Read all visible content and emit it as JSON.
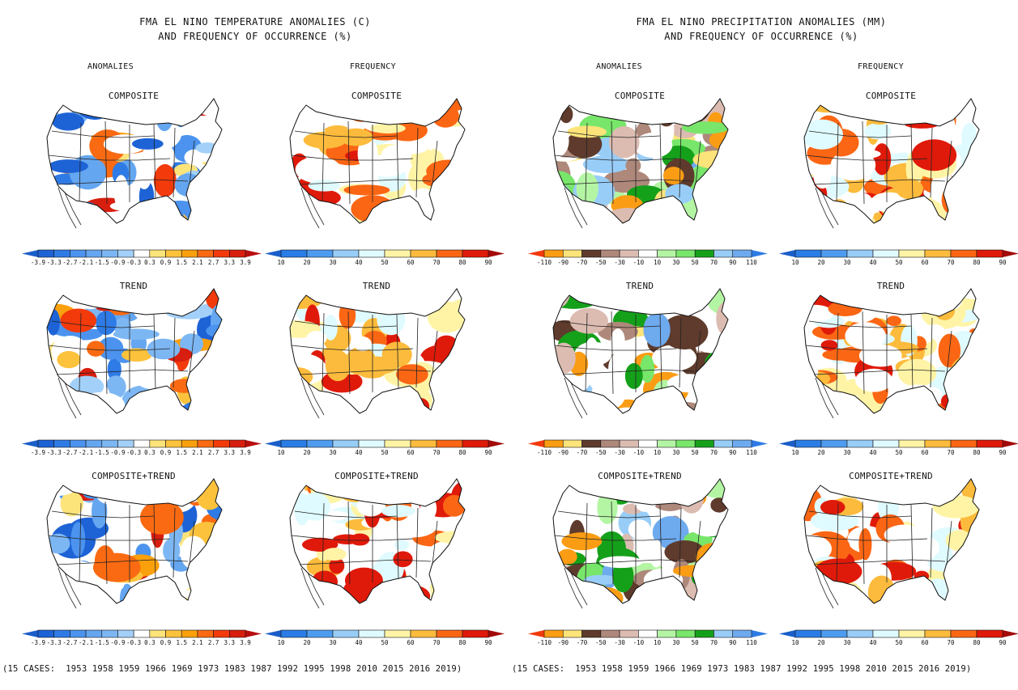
{
  "headers": {
    "temperature_title_line1": "FMA EL NINO TEMPERATURE ANOMALIES (C)",
    "temperature_title_line2": "AND FREQUENCY OF OCCURRENCE (%)",
    "precipitation_title_line1": "FMA EL NINO PRECIPITATION ANOMALIES (MM)",
    "precipitation_title_line2": "AND FREQUENCY OF OCCURRENCE (%)",
    "column_labels": [
      "ANOMALIES",
      "FREQUENCY",
      "ANOMALIES",
      "FREQUENCY"
    ]
  },
  "row_labels": [
    "COMPOSITE",
    "TREND",
    "COMPOSITE+TREND"
  ],
  "cases_text": "(15 CASES:  1953 1958 1959 1966 1969 1973 1983 1987 1992 1995 1998 2010 2015 2016 2019)",
  "colorbars": {
    "temp_anomaly": {
      "labels": [
        "-3.9",
        "-3.3",
        "-2.7",
        "-2.1",
        "-1.5",
        "-0.9",
        "-0.3",
        "0.3",
        "0.9",
        "1.5",
        "2.1",
        "2.7",
        "3.3",
        "3.9"
      ],
      "colors": [
        "#1e63d6",
        "#2f7be6",
        "#4b93ee",
        "#65a6f0",
        "#7db7f3",
        "#a2d0f9",
        "#ffffff",
        "#fde47a",
        "#fcc23c",
        "#fba00d",
        "#f96a12",
        "#f23a0b",
        "#d81e0e"
      ],
      "low_arrow": "#1a5ec9",
      "high_arrow": "#b80e0e"
    },
    "frequency": {
      "labels": [
        "10",
        "20",
        "30",
        "40",
        "50",
        "60",
        "70",
        "80",
        "90"
      ],
      "colors": [
        "#2a7de6",
        "#4e9cf0",
        "#98cdf8",
        "#e0fbff",
        "#fff4a6",
        "#fcbb3c",
        "#fb6614",
        "#e01a0a"
      ],
      "low_arrow": "#1a5ec9",
      "high_arrow": "#a30a0a"
    },
    "precip_anomaly": {
      "labels": [
        "-110",
        "-90",
        "-70",
        "-50",
        "-30",
        "-10",
        "10",
        "30",
        "50",
        "70",
        "90",
        "110"
      ],
      "colors": [
        "#fb9d14",
        "#fde47a",
        "#5e3b2c",
        "#ae887b",
        "#dcbcb1",
        "#ffffff",
        "#b4f5a4",
        "#78e66a",
        "#15a01a",
        "#98cdf8",
        "#6eaaee"
      ],
      "low_arrow": "#f23a0b",
      "high_arrow": "#2f7be6"
    }
  },
  "panels": [
    {
      "section": "temperature",
      "column": "anomalies",
      "row": "composite",
      "colorbar": "temp_anomaly",
      "summary": "Cold (blue) anomalies over southern and central US, strongest in Southwest/Mexico; warm (yellow) along northern tier"
    },
    {
      "section": "temperature",
      "column": "frequency",
      "row": "composite",
      "colorbar": "frequency",
      "summary": "High frequency (orange-red) over south-central US and Texas; lower values in north"
    },
    {
      "section": "temperature",
      "column": "anomalies",
      "row": "trend",
      "colorbar": "temp_anomaly",
      "summary": "Warm trend in West and Southeast, orange in Florida and Baja; cool trend in Upper Midwest"
    },
    {
      "section": "temperature",
      "column": "frequency",
      "row": "trend",
      "colorbar": "frequency",
      "summary": "High frequency in Southwest, Florida and Mexico; mixed elsewhere"
    },
    {
      "section": "temperature",
      "column": "anomalies",
      "row": "composite_plus_trend",
      "colorbar": "temp_anomaly",
      "summary": "Warm in West and North; cool over southern Plains/Texas"
    },
    {
      "section": "temperature",
      "column": "frequency",
      "row": "composite_plus_trend",
      "colorbar": "frequency",
      "summary": "High frequency in Texas, Pacific NW and northern border; low in California and Florida"
    },
    {
      "section": "precipitation",
      "column": "anomalies",
      "row": "composite",
      "colorbar": "precip_anomaly",
      "summary": "Wet (green/blue) over West Coast, Gulf Coast and Florida; dry (brown) in Ohio Valley and northern Rockies"
    },
    {
      "section": "precipitation",
      "column": "frequency",
      "row": "composite",
      "colorbar": "frequency",
      "summary": "High frequency in Ohio Valley, Southeast, Gulf and northern Rockies"
    },
    {
      "section": "precipitation",
      "column": "anomalies",
      "row": "trend",
      "colorbar": "precip_anomaly",
      "summary": "Wet trend in Mississippi/Ohio Valleys and NW; dry trend in Southwest, Texas and Florida"
    },
    {
      "section": "precipitation",
      "column": "frequency",
      "row": "trend",
      "colorbar": "frequency",
      "summary": "High frequency in Southwest/California, Texas and Florida"
    },
    {
      "section": "precipitation",
      "column": "anomalies",
      "row": "composite_plus_trend",
      "colorbar": "precip_anomaly",
      "summary": "Wet over most of US and West Coast; dry in Ohio Valley/Appalachians"
    },
    {
      "section": "precipitation",
      "column": "frequency",
      "row": "composite_plus_trend",
      "colorbar": "frequency",
      "summary": "High frequency in Appalachians and Gulf; mixed in West"
    }
  ]
}
